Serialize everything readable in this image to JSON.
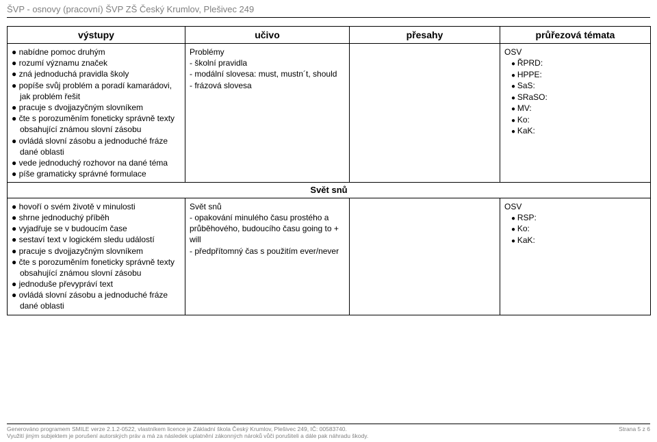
{
  "header": {
    "title": "ŠVP - osnovy (pracovní) ŠVP ZŠ Český Krumlov, Plešivec 249"
  },
  "table": {
    "headers": {
      "col1": "výstupy",
      "col2": "učivo",
      "col3": "přesahy",
      "col4": "průřezová témata"
    },
    "row1": {
      "vystupy": [
        "nabídne pomoc druhým",
        "rozumí významu značek",
        "zná jednoduchá pravidla školy",
        "popíše svůj problém a poradí kamarádovi, jak problém řešit",
        "pracuje s dvojjazyčným slovníkem",
        "čte s porozuměním foneticky správně texty obsahující známou slovní zásobu",
        "ovládá slovní zásobu a jednoduché fráze dané oblasti",
        "vede jednoduchý rozhovor na dané téma",
        "píše gramaticky správné formulace"
      ],
      "ucivo_title": "Problémy",
      "ucivo": [
        "- školní pravidla",
        "- modální slovesa: must, mustn´t, should",
        "- frázová slovesa"
      ],
      "presahy": "",
      "osv_label": "OSV",
      "osv_items": [
        "ŘPRD:",
        "HPPE:",
        "SaS:",
        "SRaSO:",
        "MV:",
        "Ko:",
        "KaK:"
      ]
    },
    "section": {
      "label": "Svět snů"
    },
    "row2": {
      "vystupy": [
        "hovoří o svém životě v minulosti",
        "shrne jednoduchý příběh",
        "vyjadřuje se v budoucím čase",
        "sestaví text v logickém sledu událostí",
        "pracuje s dvojjazyčným slovníkem",
        "čte s porozuměním foneticky správně texty obsahující známou slovní zásobu",
        "jednoduše převypráví text",
        "ovládá slovní zásobu a jednoduché fráze dané oblasti"
      ],
      "ucivo_title": "Svět snů",
      "ucivo": [
        "- opakování minulého času prostého a průběhového, budoucího času going to + will",
        "- předpřítomný čas s použitím ever/never"
      ],
      "presahy": "",
      "osv_label": "OSV",
      "osv_items": [
        "RSP:",
        "Ko:",
        "KaK:"
      ]
    }
  },
  "footer": {
    "line1": "Generováno programem SMILE verze 2.1.2-0522, vlastníkem licence je Základní škola Český Krumlov, Plešivec 249, IČ: 00583740.",
    "line2": "Využití jiným subjektem je porušení autorských práv a má za následek uplatnění zákonných nároků vůči porušiteli a dále pak náhradu škody.",
    "page": "Strana 5 z 6"
  }
}
